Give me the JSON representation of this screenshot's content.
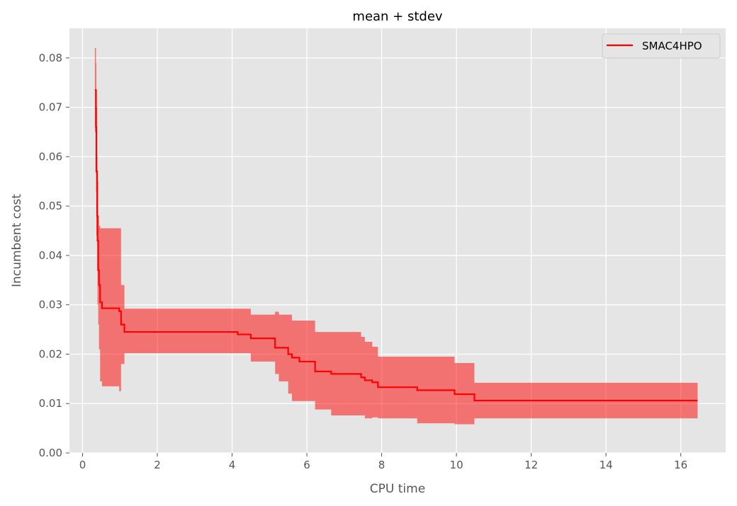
{
  "chart_data": {
    "type": "line",
    "title": "mean + stdev",
    "xlabel": "CPU time",
    "ylabel": "Incumbent cost",
    "xlim": [
      -0.35,
      17.2
    ],
    "ylim": [
      0,
      0.086
    ],
    "xticks": [
      0,
      2,
      4,
      6,
      8,
      10,
      12,
      14,
      16
    ],
    "xtick_labels": [
      "0",
      "2",
      "4",
      "6",
      "8",
      "10",
      "12",
      "14",
      "16"
    ],
    "yticks": [
      0.0,
      0.01,
      0.02,
      0.03,
      0.04,
      0.05,
      0.06,
      0.07,
      0.08
    ],
    "ytick_labels": [
      "0.00",
      "0.01",
      "0.02",
      "0.03",
      "0.04",
      "0.05",
      "0.06",
      "0.07",
      "0.08"
    ],
    "grid": true,
    "legend_position": "top-right",
    "colors": {
      "background": "#e5e5e5",
      "grid": "#ffffff",
      "line": "#ff0000",
      "band": "#ff0000",
      "band_opacity": 0.5
    },
    "series": [
      {
        "name": "SMAC4HPO",
        "x": [
          0.33,
          0.36,
          0.37,
          0.39,
          0.4,
          0.42,
          0.44,
          0.47,
          0.52,
          0.98,
          1.03,
          1.12,
          4.15,
          4.5,
          5.15,
          5.25,
          5.5,
          5.6,
          5.8,
          6.22,
          6.65,
          7.45,
          7.55,
          7.75,
          7.9,
          8.95,
          9.95,
          10.48,
          16.45
        ],
        "y": [
          0.0735,
          0.066,
          0.057,
          0.048,
          0.043,
          0.037,
          0.034,
          0.0305,
          0.0293,
          0.0287,
          0.026,
          0.0245,
          0.024,
          0.0232,
          0.0213,
          0.0213,
          0.02,
          0.0193,
          0.0185,
          0.0165,
          0.016,
          0.0153,
          0.0147,
          0.0143,
          0.0133,
          0.0127,
          0.0119,
          0.0106,
          0.0106
        ],
        "upper": [
          0.082,
          0.079,
          0.07,
          0.06,
          0.055,
          0.048,
          0.046,
          0.0455,
          0.0455,
          0.0455,
          0.034,
          0.0292,
          0.0292,
          0.028,
          0.0286,
          0.028,
          0.028,
          0.0268,
          0.0268,
          0.0245,
          0.0245,
          0.0235,
          0.0225,
          0.0215,
          0.0195,
          0.0195,
          0.0182,
          0.0142,
          0.0142
        ],
        "lower": [
          0.065,
          0.053,
          0.044,
          0.037,
          0.03,
          0.026,
          0.021,
          0.0145,
          0.0135,
          0.0125,
          0.018,
          0.0202,
          0.0202,
          0.0185,
          0.016,
          0.0145,
          0.012,
          0.0105,
          0.0105,
          0.0088,
          0.0076,
          0.0076,
          0.007,
          0.0072,
          0.007,
          0.006,
          0.0058,
          0.007,
          0.007
        ]
      }
    ]
  }
}
